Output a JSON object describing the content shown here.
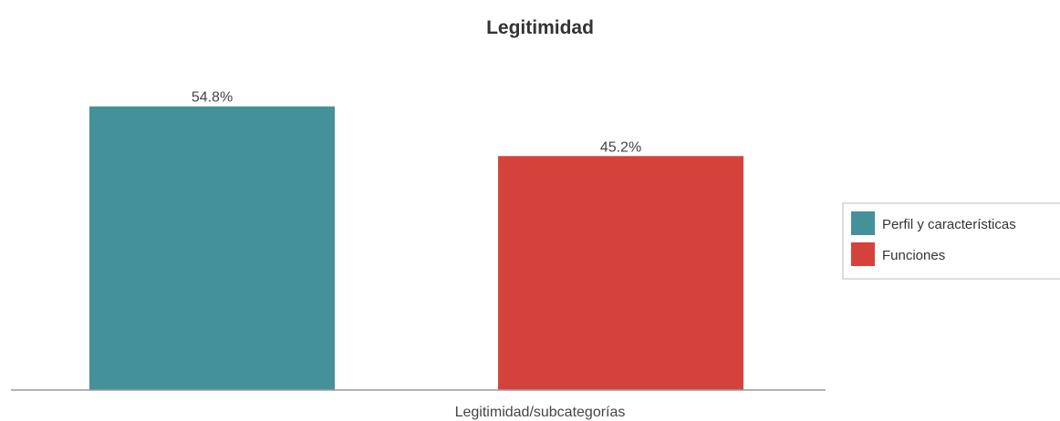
{
  "chart_data": {
    "type": "bar",
    "title": "Legitimidad",
    "xlabel": "Legitimidad/subcategorías",
    "ylabel": "",
    "ylim": [
      0,
      60
    ],
    "grid": false,
    "legend_position": "right",
    "series": [
      {
        "name": "Perfil y características",
        "value": 54.8,
        "label": "54.8%",
        "color": "#45919a"
      },
      {
        "name": "Funciones",
        "value": 45.2,
        "label": "45.2%",
        "color": "#d5423b"
      }
    ]
  }
}
